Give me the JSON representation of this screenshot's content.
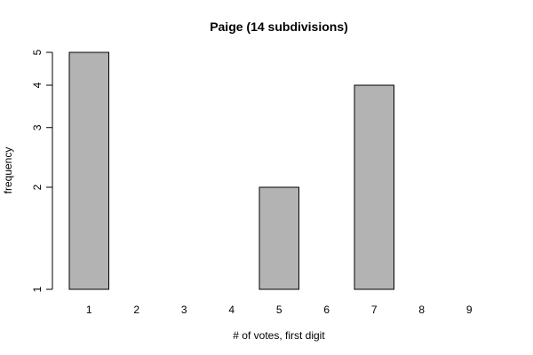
{
  "chart_data": {
    "type": "bar",
    "title": "Paige (14 subdivisions)",
    "xlabel": "# of votes, first digit",
    "ylabel": "frequency",
    "categories": [
      "1",
      "2",
      "3",
      "4",
      "5",
      "6",
      "7",
      "8",
      "9"
    ],
    "values": [
      5,
      1,
      0,
      0,
      2,
      1,
      4,
      1,
      0
    ],
    "y_scale": "log",
    "ylim": [
      1,
      5
    ],
    "y_ticks": [
      1,
      2,
      3,
      4,
      5
    ],
    "grid": false,
    "legend": "none",
    "bar_color": "#b3b3b3",
    "bar_border_color": "#000000"
  }
}
